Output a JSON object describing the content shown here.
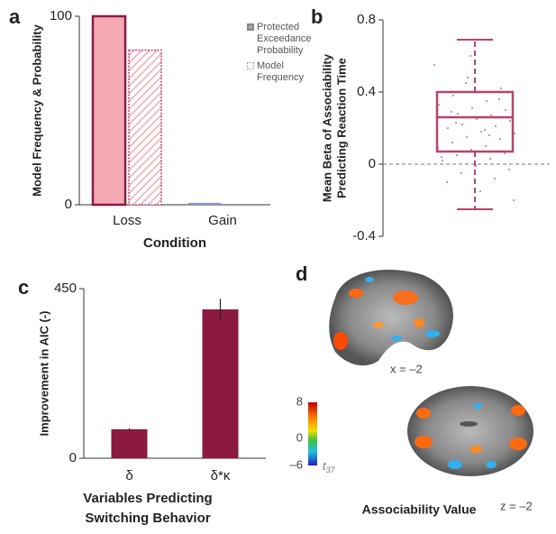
{
  "chart_data": [
    {
      "type": "bar",
      "panel_label": "a",
      "categories": [
        "Loss",
        "Gain"
      ],
      "series": [
        {
          "name": "Protected Exceedance Probability",
          "color": "#f4a9b5",
          "colors": [
            "#f4a9b5",
            "#8d93c8"
          ],
          "edgecolor": "#8b1a3e",
          "values": [
            100,
            1
          ]
        },
        {
          "name": "Model Frequency",
          "color": "#f4a9b5",
          "edgecolor": "#b5446e",
          "hatch": true,
          "values": [
            82,
            0
          ]
        }
      ],
      "ylim": [
        0,
        100
      ],
      "yticks": [
        0,
        100
      ],
      "xlabel": "Condition",
      "ylabel": "Model Frequency & Probability",
      "legend": "upper right"
    },
    {
      "type": "box",
      "panel_label": "b",
      "box": {
        "min": -0.25,
        "q1": 0.07,
        "median": 0.26,
        "q3": 0.4,
        "max": 0.69
      },
      "points": [
        0.55,
        0.48,
        0.42,
        0.38,
        0.35,
        0.33,
        0.31,
        0.3,
        0.28,
        0.27,
        0.26,
        0.25,
        0.24,
        0.22,
        0.21,
        0.2,
        0.18,
        0.17,
        0.15,
        0.14,
        0.12,
        0.1,
        0.09,
        0.08,
        0.06,
        0.05,
        0.03,
        0.02,
        -0.01,
        -0.03,
        -0.05,
        -0.08,
        -0.1,
        -0.15,
        -0.2,
        0.45,
        0.36,
        0.29,
        0.19,
        0.11,
        0.6,
        0.4,
        0.23,
        0.16,
        0.04
      ],
      "color": "#b5446e",
      "ylim": [
        -0.4,
        0.8
      ],
      "yticks": [
        -0.4,
        0,
        0.4,
        0.8
      ],
      "reference_line": 0,
      "ylabel": [
        "Mean Beta of Associability",
        "Predicting Reaction Time"
      ]
    },
    {
      "type": "bar",
      "panel_label": "c",
      "categories": [
        "δ",
        "δ*κ"
      ],
      "values": [
        77,
        395
      ],
      "errors": [
        2,
        28
      ],
      "color": "#8b1a3e",
      "ylim": [
        0,
        450
      ],
      "yticks": [
        0,
        450
      ],
      "xlabel": [
        "Variables Predicting",
        "Switching Behavior"
      ],
      "ylabel": "Improvement in AIC (-)"
    }
  ],
  "panel_d": {
    "panel_label": "d",
    "sagittal_label": "x = –2",
    "axial_label": "z = –2",
    "title": "Associability Value",
    "colorbar": {
      "lim": [
        -6,
        8
      ],
      "ticks": [
        8,
        0,
        {
          "value": -6,
          "label": "–6"
        }
      ],
      "stat_label": "t",
      "stat_subscript": "37"
    }
  }
}
